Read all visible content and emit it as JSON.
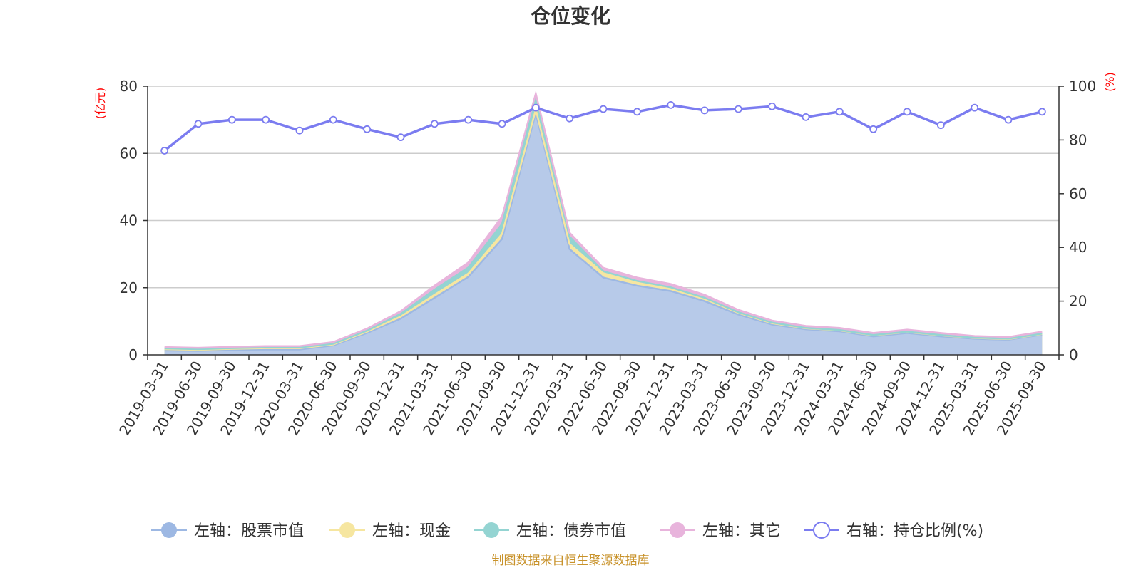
{
  "title": "仓位变化",
  "footer": "制图数据来自恒生聚源数据库",
  "left_unit": "(亿元)",
  "right_unit": "(%)",
  "colors": {
    "stock": "#9db8e3",
    "stock_fill": "#b7cae9",
    "cash": "#f6e6a0",
    "bond": "#94d4d2",
    "other": "#e8b4dc",
    "ratio": "#7b7cf0",
    "grid": "#cccccc",
    "axis": "#333333"
  },
  "legend": [
    {
      "label": "左轴：股票市值",
      "series": "stock"
    },
    {
      "label": "左轴：现金",
      "series": "cash"
    },
    {
      "label": "左轴：债券市值",
      "series": "bond"
    },
    {
      "label": "左轴：其它",
      "series": "other"
    },
    {
      "label": "右轴：持仓比例(%)",
      "series": "ratio"
    }
  ],
  "chart_data": {
    "type": "area",
    "categories": [
      "2019-03-31",
      "2019-06-30",
      "2019-09-30",
      "2019-12-31",
      "2020-03-31",
      "2020-06-30",
      "2020-09-30",
      "2020-12-31",
      "2021-03-31",
      "2021-06-30",
      "2021-09-30",
      "2021-12-31",
      "2022-03-31",
      "2022-06-30",
      "2022-09-30",
      "2022-12-31",
      "2023-03-31",
      "2023-06-30",
      "2023-09-30",
      "2023-12-31",
      "2024-03-31",
      "2024-06-30",
      "2024-09-30",
      "2024-12-31",
      "2025-03-31",
      "2025-06-30",
      "2025-09-30"
    ],
    "left_axis": {
      "min": 0,
      "max": 80,
      "ticks": [
        0,
        20,
        40,
        60,
        80
      ]
    },
    "right_axis": {
      "min": 0,
      "max": 100,
      "ticks": [
        0,
        20,
        40,
        60,
        80,
        100
      ]
    },
    "stacked": true,
    "grid": true,
    "legend_position": "bottom",
    "series": [
      {
        "key": "stock",
        "axis": "left",
        "values": [
          1.3,
          1.2,
          1.5,
          1.6,
          1.6,
          2.8,
          6.5,
          10.8,
          17.0,
          23.2,
          34.5,
          72.0,
          31.5,
          23.0,
          20.6,
          19.0,
          16.0,
          12.0,
          9.0,
          7.6,
          7.0,
          5.5,
          6.5,
          5.5,
          4.8,
          4.5,
          6.0
        ]
      },
      {
        "key": "cash",
        "axis": "left",
        "values": [
          0.4,
          0.3,
          0.3,
          0.4,
          0.4,
          0.3,
          0.4,
          0.6,
          0.9,
          1.0,
          1.5,
          1.0,
          1.5,
          1.3,
          1.0,
          0.8,
          0.7,
          0.5,
          0.4,
          0.3,
          0.3,
          0.3,
          0.3,
          0.3,
          0.2,
          0.2,
          0.2
        ]
      },
      {
        "key": "bond",
        "axis": "left",
        "values": [
          0.2,
          0.2,
          0.2,
          0.2,
          0.2,
          0.2,
          0.3,
          0.8,
          1.5,
          1.8,
          3.0,
          3.0,
          2.2,
          0.6,
          0.4,
          0.3,
          0.3,
          0.2,
          0.2,
          0.1,
          0.1,
          0.1,
          0.1,
          0.1,
          0.1,
          0.1,
          0.1
        ]
      },
      {
        "key": "other",
        "axis": "left",
        "values": [
          0.4,
          0.4,
          0.4,
          0.4,
          0.4,
          0.5,
          0.6,
          0.8,
          1.2,
          1.5,
          2.2,
          1.8,
          1.2,
          1.0,
          1.0,
          1.0,
          0.9,
          0.7,
          0.6,
          0.6,
          0.6,
          0.6,
          0.6,
          0.6,
          0.5,
          0.5,
          0.6
        ]
      },
      {
        "key": "ratio",
        "axis": "right",
        "values": [
          76,
          86,
          87.5,
          87.5,
          83.5,
          87.5,
          84,
          81,
          86,
          87.5,
          86,
          92,
          88,
          91.5,
          90.5,
          93,
          91,
          91.5,
          92.5,
          88.5,
          90.5,
          84,
          90.5,
          85.5,
          92,
          87.5,
          90.5
        ]
      }
    ]
  }
}
